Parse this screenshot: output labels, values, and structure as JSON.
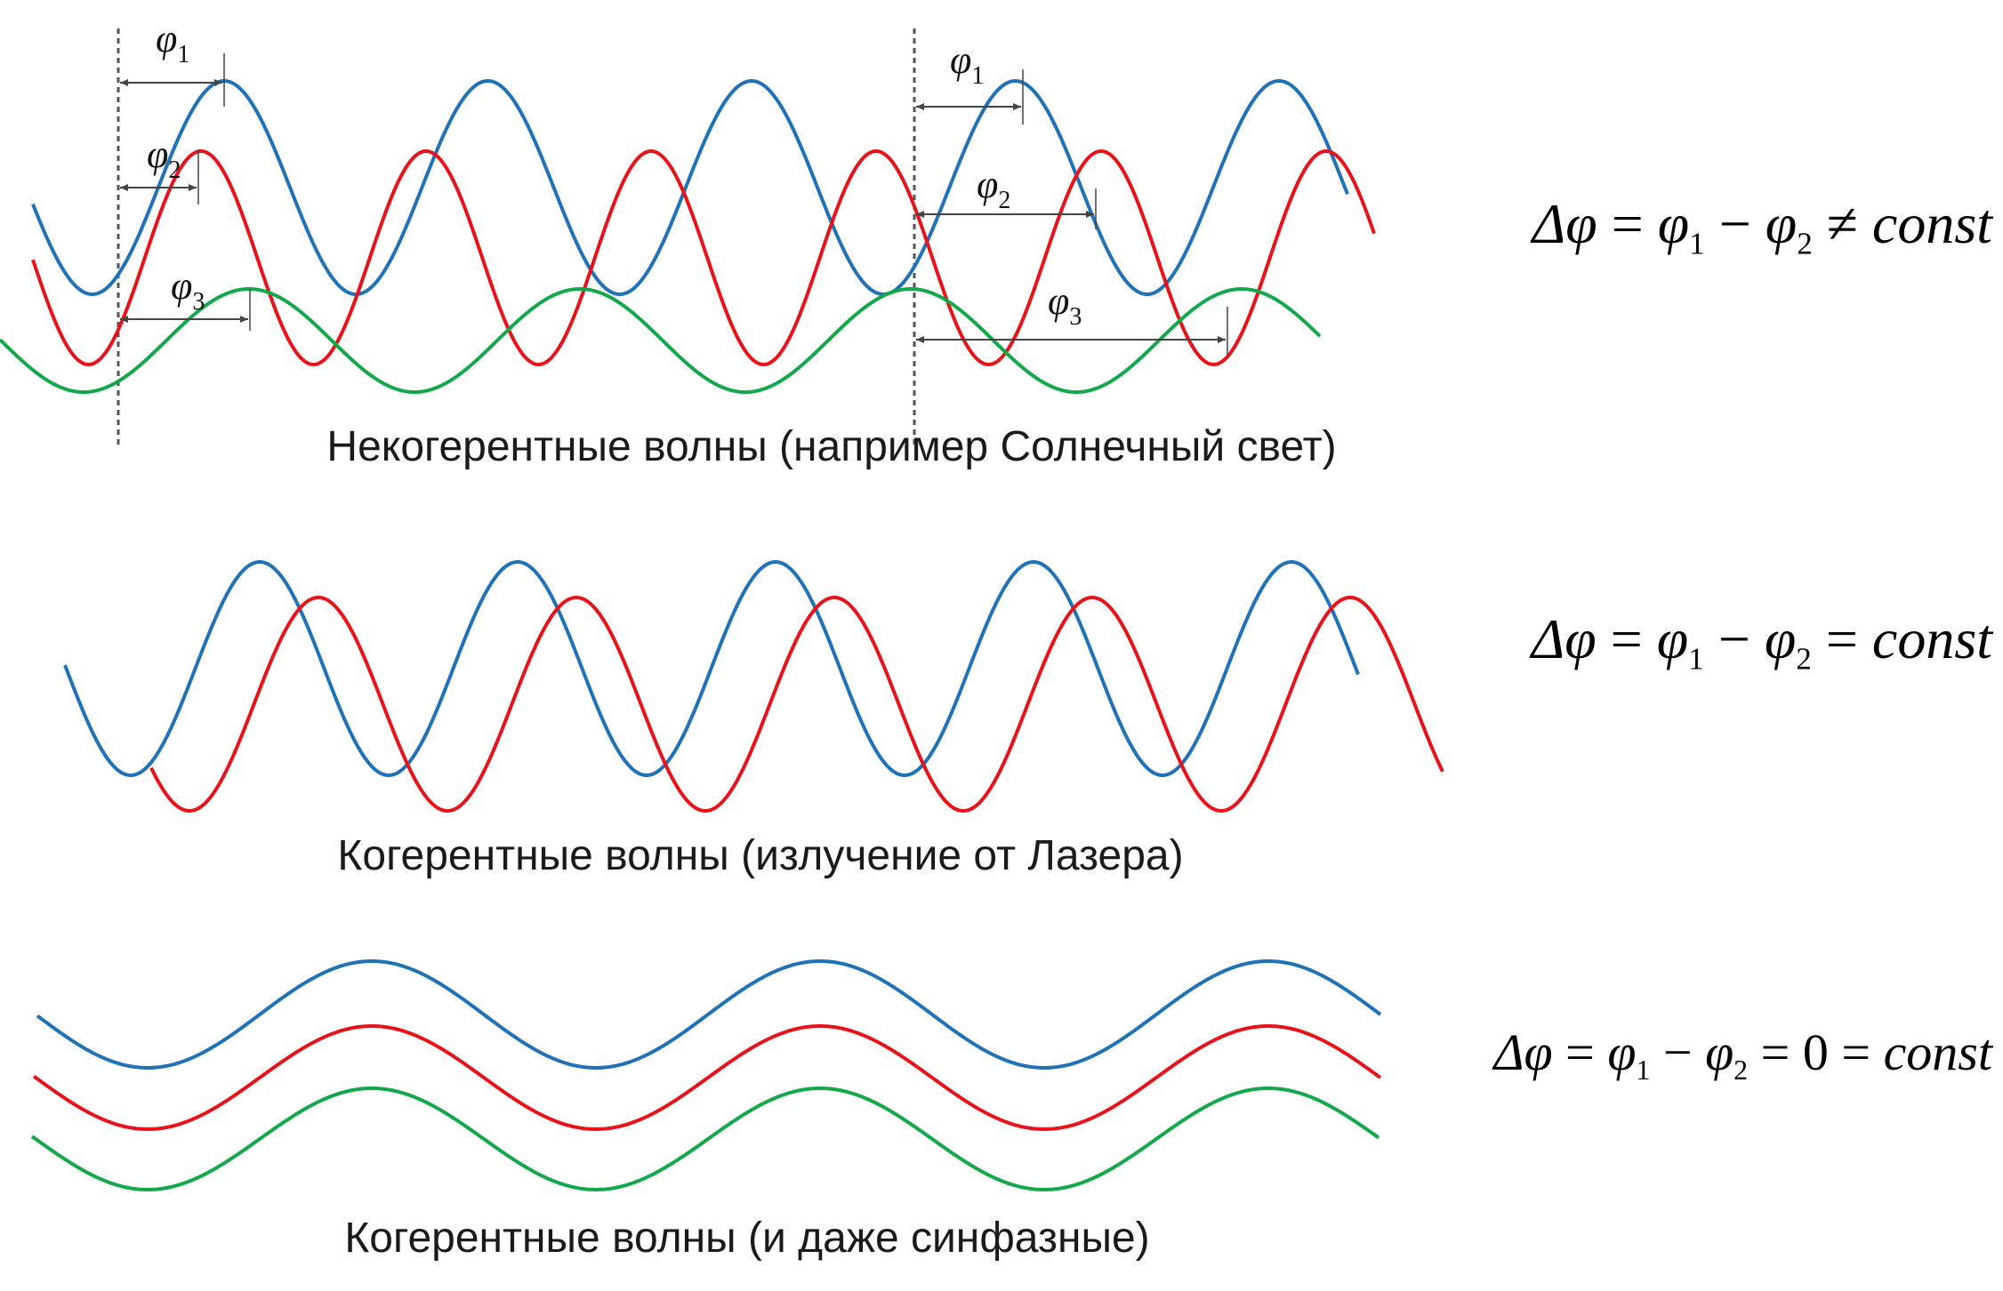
{
  "colors": {
    "blue": "#1f72b8",
    "red": "#e8131a",
    "green": "#13a84a",
    "marker": "#444444"
  },
  "panels": [
    {
      "caption": "Некогерентные волны (например Солнечный свет)"
    },
    {
      "caption": "Когерентные волны (излучение от Лазера)"
    },
    {
      "caption": "Когерентные волны (и даже синфазные)"
    }
  ],
  "formulas": {
    "f1": {
      "lhs": "Δφ",
      "eq": "=",
      "p1": "φ",
      "s1": "1",
      "minus": "−",
      "p2": "φ",
      "s2": "2",
      "rel": "≠",
      "rhs": "const"
    },
    "f2": {
      "lhs": "Δφ",
      "eq": "=",
      "p1": "φ",
      "s1": "1",
      "minus": "−",
      "p2": "φ",
      "s2": "2",
      "rel": "=",
      "rhs": "const"
    },
    "f3": {
      "lhs": "Δφ",
      "eq": "=",
      "p1": "φ",
      "s1": "1",
      "minus": "−",
      "p2": "φ",
      "s2": "2",
      "rel": "=",
      "zero": "0",
      "eq2": "=",
      "rhs": "const"
    }
  },
  "phase_labels": [
    {
      "sym": "φ",
      "sub": "1"
    },
    {
      "sym": "φ",
      "sub": "2"
    },
    {
      "sym": "φ",
      "sub": "3"
    },
    {
      "sym": "φ",
      "sub": "1"
    },
    {
      "sym": "φ",
      "sub": "2"
    },
    {
      "sym": "φ",
      "sub": "3"
    }
  ]
}
